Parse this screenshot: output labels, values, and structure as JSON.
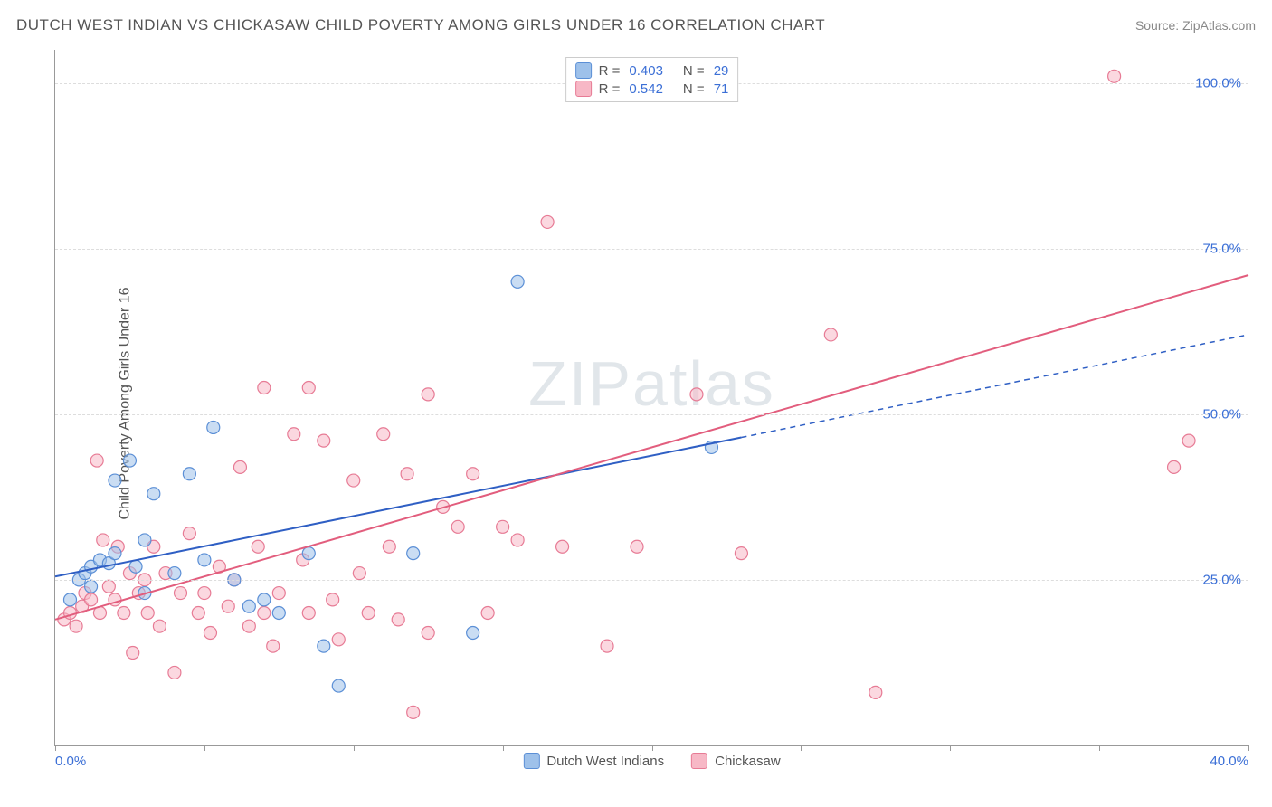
{
  "header": {
    "title": "DUTCH WEST INDIAN VS CHICKASAW CHILD POVERTY AMONG GIRLS UNDER 16 CORRELATION CHART",
    "source": "Source: ZipAtlas.com"
  },
  "chart": {
    "type": "scatter",
    "ylabel": "Child Poverty Among Girls Under 16",
    "xlim": [
      0,
      40
    ],
    "ylim": [
      0,
      105
    ],
    "xticks": [
      {
        "v": 0,
        "label": "0.0%"
      },
      {
        "v": 40,
        "label": "40.0%"
      }
    ],
    "xtick_marks": [
      0,
      5,
      10,
      15,
      20,
      25,
      30,
      35,
      40
    ],
    "yticks": [
      {
        "v": 25,
        "label": "25.0%"
      },
      {
        "v": 50,
        "label": "50.0%"
      },
      {
        "v": 75,
        "label": "75.0%"
      },
      {
        "v": 100,
        "label": "100.0%"
      }
    ],
    "grid_color": "#dddddd",
    "background_color": "#ffffff",
    "axis_color": "#999999",
    "tick_label_color": "#3b6fd6",
    "watermark": "ZIPatlas",
    "marker_radius": 7,
    "marker_stroke_width": 1.2,
    "series": [
      {
        "key": "dutch",
        "name": "Dutch West Indians",
        "fill": "#9ec1ea",
        "stroke": "#5b8fd6",
        "fill_opacity": 0.55,
        "r": "0.403",
        "n": "29",
        "trend": {
          "color": "#2f5fc4",
          "width": 2,
          "solid_until_x": 23,
          "dash": "6,5",
          "y_at_x0": 25.5,
          "y_at_xmax": 62
        },
        "points": [
          [
            0.5,
            22
          ],
          [
            0.8,
            25
          ],
          [
            1.0,
            26
          ],
          [
            1.2,
            27
          ],
          [
            1.5,
            28
          ],
          [
            1.8,
            27.5
          ],
          [
            1.2,
            24
          ],
          [
            2.0,
            29
          ],
          [
            2.0,
            40
          ],
          [
            2.5,
            43
          ],
          [
            2.7,
            27
          ],
          [
            3.0,
            31
          ],
          [
            3.3,
            38
          ],
          [
            3.0,
            23
          ],
          [
            4.0,
            26
          ],
          [
            4.5,
            41
          ],
          [
            5.0,
            28
          ],
          [
            5.3,
            48
          ],
          [
            6.0,
            25
          ],
          [
            6.5,
            21
          ],
          [
            7.0,
            22
          ],
          [
            7.5,
            20
          ],
          [
            8.5,
            29
          ],
          [
            9.0,
            15
          ],
          [
            9.5,
            9
          ],
          [
            12.0,
            29
          ],
          [
            14.0,
            17
          ],
          [
            15.5,
            70
          ],
          [
            22.0,
            45
          ]
        ]
      },
      {
        "key": "chickasaw",
        "name": "Chickasaw",
        "fill": "#f7b8c6",
        "stroke": "#e77b95",
        "fill_opacity": 0.55,
        "r": "0.542",
        "n": "71",
        "trend": {
          "color": "#e25d7d",
          "width": 2,
          "solid_until_x": 40,
          "dash": "",
          "y_at_x0": 19,
          "y_at_xmax": 71
        },
        "points": [
          [
            0.3,
            19
          ],
          [
            0.5,
            20
          ],
          [
            0.7,
            18
          ],
          [
            0.9,
            21
          ],
          [
            1.0,
            23
          ],
          [
            1.2,
            22
          ],
          [
            1.4,
            43
          ],
          [
            1.5,
            20
          ],
          [
            1.6,
            31
          ],
          [
            1.8,
            24
          ],
          [
            2.0,
            22
          ],
          [
            2.1,
            30
          ],
          [
            2.3,
            20
          ],
          [
            2.5,
            26
          ],
          [
            2.6,
            14
          ],
          [
            2.8,
            23
          ],
          [
            3.0,
            25
          ],
          [
            3.1,
            20
          ],
          [
            3.3,
            30
          ],
          [
            3.5,
            18
          ],
          [
            3.7,
            26
          ],
          [
            4.0,
            11
          ],
          [
            4.2,
            23
          ],
          [
            4.5,
            32
          ],
          [
            4.8,
            20
          ],
          [
            5.0,
            23
          ],
          [
            5.2,
            17
          ],
          [
            5.5,
            27
          ],
          [
            5.8,
            21
          ],
          [
            6.0,
            25
          ],
          [
            6.2,
            42
          ],
          [
            6.5,
            18
          ],
          [
            6.8,
            30
          ],
          [
            7.0,
            54
          ],
          [
            7.0,
            20
          ],
          [
            7.3,
            15
          ],
          [
            7.5,
            23
          ],
          [
            8.0,
            47
          ],
          [
            8.3,
            28
          ],
          [
            8.5,
            20
          ],
          [
            8.5,
            54
          ],
          [
            9.0,
            46
          ],
          [
            9.3,
            22
          ],
          [
            9.5,
            16
          ],
          [
            10.0,
            40
          ],
          [
            10.2,
            26
          ],
          [
            10.5,
            20
          ],
          [
            11.0,
            47
          ],
          [
            11.2,
            30
          ],
          [
            11.5,
            19
          ],
          [
            11.8,
            41
          ],
          [
            12.0,
            5
          ],
          [
            12.5,
            17
          ],
          [
            12.5,
            53
          ],
          [
            13.0,
            36
          ],
          [
            13.5,
            33
          ],
          [
            14.0,
            41
          ],
          [
            14.5,
            20
          ],
          [
            15.0,
            33
          ],
          [
            15.5,
            31
          ],
          [
            16.5,
            79
          ],
          [
            17.0,
            30
          ],
          [
            18.5,
            15
          ],
          [
            19.5,
            30
          ],
          [
            21.5,
            53
          ],
          [
            23.0,
            29
          ],
          [
            26.0,
            62
          ],
          [
            27.5,
            8
          ],
          [
            35.5,
            101
          ],
          [
            37.5,
            42
          ],
          [
            38.0,
            46
          ]
        ]
      }
    ],
    "legend_bottom": [
      {
        "series": "dutch",
        "label": "Dutch West Indians"
      },
      {
        "series": "chickasaw",
        "label": "Chickasaw"
      }
    ],
    "legend_top_labels": {
      "r_prefix": "R =",
      "n_prefix": "N ="
    }
  }
}
